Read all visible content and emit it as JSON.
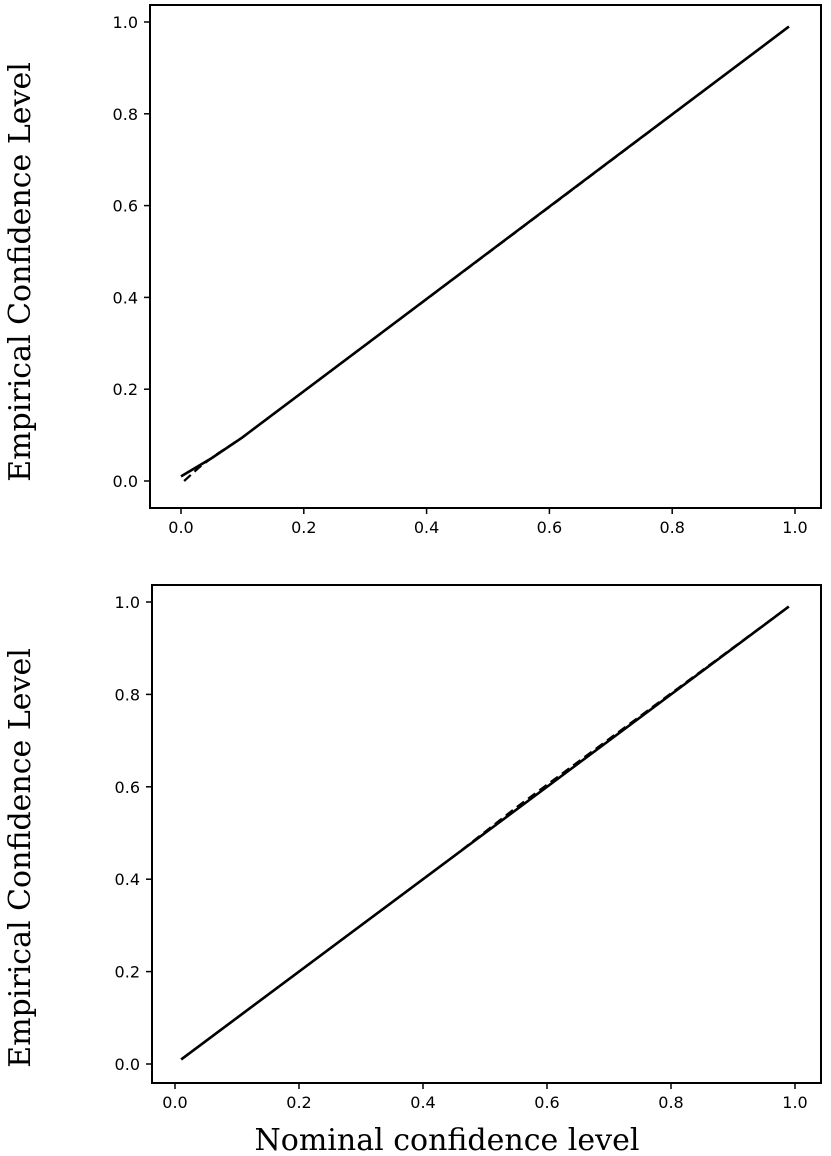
{
  "chart_data": [
    {
      "type": "line",
      "xlabel": "",
      "ylabel": "Empirical Confidence Level",
      "xlim": [
        0.0,
        1.0
      ],
      "ylim": [
        0.0,
        1.0
      ],
      "xticks": [
        "0.0",
        "0.2",
        "0.4",
        "0.6",
        "0.8",
        "1.0"
      ],
      "yticks": [
        "0.0",
        "0.2",
        "0.4",
        "0.6",
        "0.8",
        "1.0"
      ],
      "grid": false,
      "series": [
        {
          "style": "solid",
          "color": "#000000",
          "x": [
            0.0,
            0.05,
            0.1,
            0.99
          ],
          "y": [
            0.01,
            0.05,
            0.095,
            0.99
          ]
        },
        {
          "style": "dashed",
          "color": "#000000",
          "x": [
            0.005,
            0.03,
            0.06,
            0.1,
            0.6,
            0.99
          ],
          "y": [
            0.0,
            0.03,
            0.06,
            0.095,
            0.597,
            0.99
          ]
        }
      ]
    },
    {
      "type": "line",
      "xlabel": "Nominal confidence level",
      "ylabel": "Empirical Confidence Level",
      "xlim": [
        0.0,
        1.0
      ],
      "ylim": [
        0.0,
        1.0
      ],
      "xticks": [
        "0.0",
        "0.2",
        "0.4",
        "0.6",
        "0.8",
        "1.0"
      ],
      "yticks": [
        "0.0",
        "0.2",
        "0.4",
        "0.6",
        "0.8",
        "1.0"
      ],
      "grid": false,
      "series": [
        {
          "style": "solid",
          "color": "#000000",
          "x": [
            0.01,
            0.99
          ],
          "y": [
            0.01,
            0.99
          ]
        },
        {
          "style": "dashed",
          "color": "#000000",
          "x": [
            0.01,
            0.3,
            0.45,
            0.55,
            0.99
          ],
          "y": [
            0.01,
            0.3,
            0.45,
            0.555,
            0.99
          ]
        }
      ]
    }
  ]
}
